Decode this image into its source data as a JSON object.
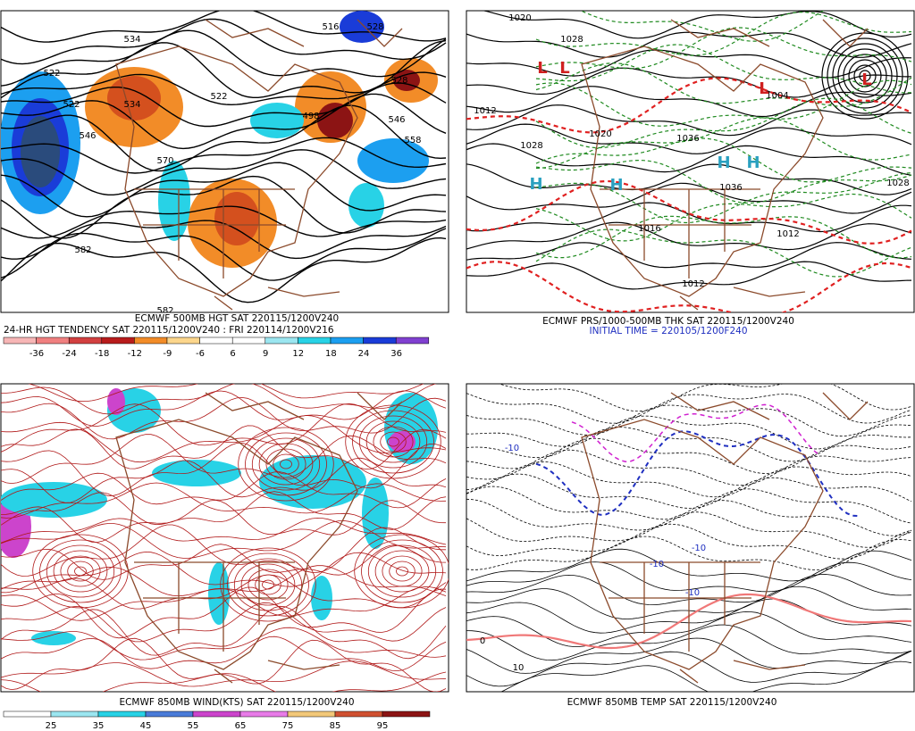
{
  "panels": [
    {
      "title": "ECMWF 500MB HGT SAT 220115/1200V240",
      "subtitle": "24-HR HGT TENDENCY SAT 220115/1200V240 : FRI 220114/1200V216",
      "colorbar": [
        "-36",
        "-24",
        "-18",
        "-12",
        "-9",
        "-6",
        "6",
        "9",
        "12",
        "18",
        "24",
        "36"
      ],
      "labels": [
        "534",
        "522",
        "522",
        "546",
        "534",
        "522",
        "498",
        "528",
        "546",
        "558",
        "582",
        "582",
        "570",
        "516",
        "528"
      ]
    },
    {
      "title": "ECMWF PRS/1000-500MB THK SAT 220115/1200V240",
      "subtitle": "INITIAL TIME = 220105/1200F240",
      "labels": [
        "1028",
        "1012",
        "1028",
        "1020",
        "1036",
        "1004",
        "1036",
        "1028",
        "1012",
        "1016",
        "1012",
        "1020"
      ],
      "markers": [
        "H",
        "H",
        "H",
        "H",
        "L",
        "L",
        "L",
        "L"
      ]
    },
    {
      "title": "ECMWF 850MB WIND(KTS) SAT 220115/1200V240",
      "colorbar": [
        "25",
        "35",
        "45",
        "55",
        "65",
        "75",
        "85",
        "95"
      ]
    },
    {
      "title": "ECMWF 850MB TEMP SAT 220115/1200V240",
      "labels": [
        "-10",
        "-10",
        "-10",
        "-10",
        "0",
        "10"
      ]
    }
  ]
}
